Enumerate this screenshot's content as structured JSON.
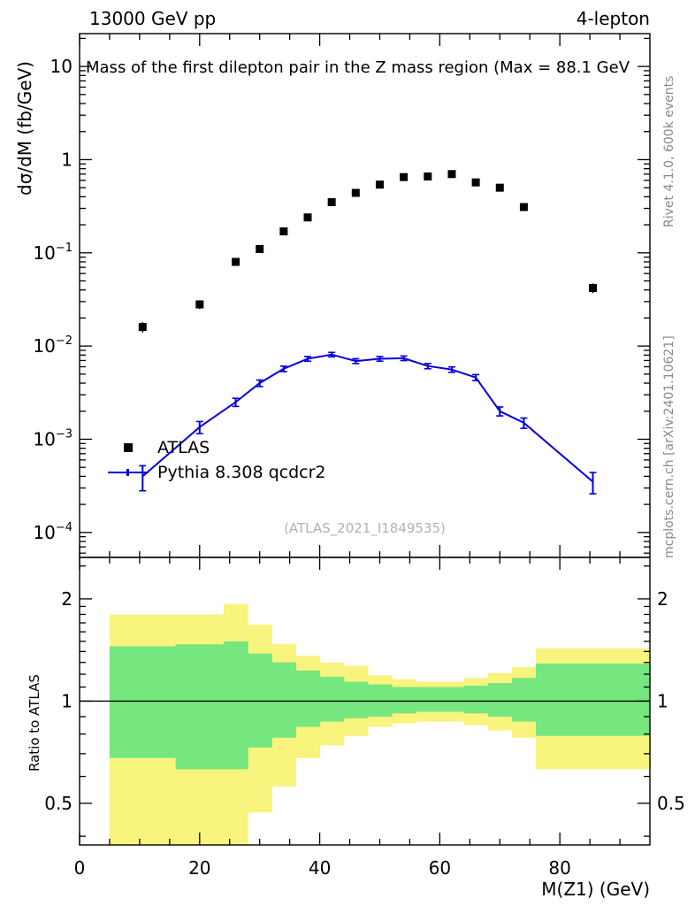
{
  "header": {
    "left": "13000 GeV pp",
    "right": "4-lepton"
  },
  "title": "Mass of the first dilepton pair in the Z mass region (Max = 88.1 GeV",
  "watermark": "(ATLAS_2021_I1849535)",
  "side_labels": {
    "rivet": "Rivet 4.1.0, 600k events",
    "mcplots": "mcplots.cern.ch [arXiv:2401.10621]"
  },
  "axes": {
    "xlabel": "M(Z1) (GeV)",
    "ylabel_main": "dσ/dM (fb/GeV)",
    "ylabel_ratio": "Ratio to ATLAS"
  },
  "legend": {
    "entries": [
      {
        "label": "ATLAS",
        "marker": "square",
        "color": "#000000"
      },
      {
        "label": "Pythia 8.308 qcdcr2",
        "marker": "line",
        "color": "#0000dd"
      }
    ]
  },
  "chart_data": [
    {
      "type": "scatter",
      "panel": "main",
      "title": "Mass of the first dilepton pair in the Z mass region (Max = 88.1 GeV",
      "xlabel": "M(Z1) (GeV)",
      "ylabel": "dσ/dM (fb/GeV)",
      "yscale": "log",
      "xlim": [
        0,
        95
      ],
      "ylim": [
        5.4e-05,
        22.5
      ],
      "x": [
        10.5,
        20,
        26,
        30,
        34,
        38,
        42,
        46,
        50,
        54,
        58,
        62,
        66,
        70,
        74,
        85.5
      ],
      "series": [
        {
          "name": "ATLAS",
          "color": "#000000",
          "marker": "square",
          "line": false,
          "y": [
            0.016,
            0.028,
            0.08,
            0.11,
            0.17,
            0.24,
            0.35,
            0.44,
            0.54,
            0.65,
            0.66,
            0.7,
            0.57,
            0.5,
            0.31,
            0.042
          ],
          "yerr": [
            0.002,
            0.003,
            0.007,
            0.009,
            0.012,
            0.015,
            0.02,
            0.024,
            0.027,
            0.03,
            0.03,
            0.032,
            0.028,
            0.025,
            0.017,
            0.005
          ]
        },
        {
          "name": "Pythia 8.308 qcdcr2",
          "color": "#0000dd",
          "marker": "tick",
          "line": true,
          "y": [
            0.0004,
            0.00135,
            0.0025,
            0.004,
            0.0057,
            0.0073,
            0.0081,
            0.0069,
            0.0073,
            0.0074,
            0.0061,
            0.0056,
            0.0046,
            0.002,
            0.0015,
            0.00035
          ],
          "yerr": [
            0.00012,
            0.0002,
            0.00025,
            0.00032,
            0.00038,
            0.00042,
            0.00045,
            0.00041,
            0.00042,
            0.00042,
            0.00039,
            0.00037,
            0.00034,
            0.00022,
            0.00019,
            9e-05
          ]
        }
      ],
      "xticks": [
        0,
        20,
        40,
        60,
        80
      ],
      "xminor_step": 5,
      "yticks": [
        {
          "v": 10,
          "base": "10",
          "exp": ""
        },
        {
          "v": 1,
          "base": "1",
          "exp": ""
        },
        {
          "v": 0.1,
          "base": "10",
          "exp": "−1"
        },
        {
          "v": 0.01,
          "base": "10",
          "exp": "−2"
        },
        {
          "v": 0.001,
          "base": "10",
          "exp": "−3"
        },
        {
          "v": 0.0001,
          "base": "10",
          "exp": "−4"
        }
      ],
      "legend_position": "center-left",
      "grid": false
    },
    {
      "type": "band-steps",
      "panel": "ratio",
      "ylabel": "Ratio to ATLAS",
      "yscale": "log",
      "xlim": [
        0,
        95
      ],
      "ylim": [
        0.377,
        2.65
      ],
      "reference_line": 1.0,
      "bin_edges": [
        5,
        16,
        24,
        28,
        32,
        36,
        40,
        44,
        48,
        52,
        56,
        60,
        64,
        68,
        72,
        76,
        95
      ],
      "bands": [
        {
          "name": "uncertainty-band-outer",
          "color": "#f8f47d",
          "lo": [
            0.3,
            0.3,
            0.3,
            0.47,
            0.56,
            0.68,
            0.74,
            0.79,
            0.84,
            0.86,
            0.87,
            0.87,
            0.85,
            0.82,
            0.78,
            0.63
          ],
          "hi": [
            1.8,
            1.8,
            1.93,
            1.68,
            1.47,
            1.36,
            1.3,
            1.27,
            1.19,
            1.16,
            1.14,
            1.14,
            1.17,
            1.21,
            1.26,
            1.43
          ]
        },
        {
          "name": "uncertainty-band-inner",
          "color": "#76e77e",
          "lo": [
            0.68,
            0.63,
            0.63,
            0.73,
            0.78,
            0.84,
            0.87,
            0.89,
            0.9,
            0.92,
            0.93,
            0.93,
            0.92,
            0.9,
            0.87,
            0.79
          ],
          "hi": [
            1.45,
            1.47,
            1.5,
            1.38,
            1.3,
            1.23,
            1.18,
            1.14,
            1.12,
            1.1,
            1.1,
            1.1,
            1.11,
            1.13,
            1.17,
            1.29
          ]
        }
      ],
      "yticks": [
        {
          "v": 2,
          "base": "2",
          "exp": ""
        },
        {
          "v": 1,
          "base": "1",
          "exp": ""
        },
        {
          "v": 0.5,
          "base": "0.5",
          "exp": ""
        }
      ],
      "yminor": [
        0.4,
        0.6,
        0.7,
        0.8,
        0.9,
        1.1,
        1.2,
        1.3,
        1.4,
        1.5,
        1.6,
        1.7,
        1.8,
        1.9,
        2.5
      ],
      "xticks": [
        0,
        20,
        40,
        60,
        80
      ],
      "xminor_step": 5
    }
  ]
}
